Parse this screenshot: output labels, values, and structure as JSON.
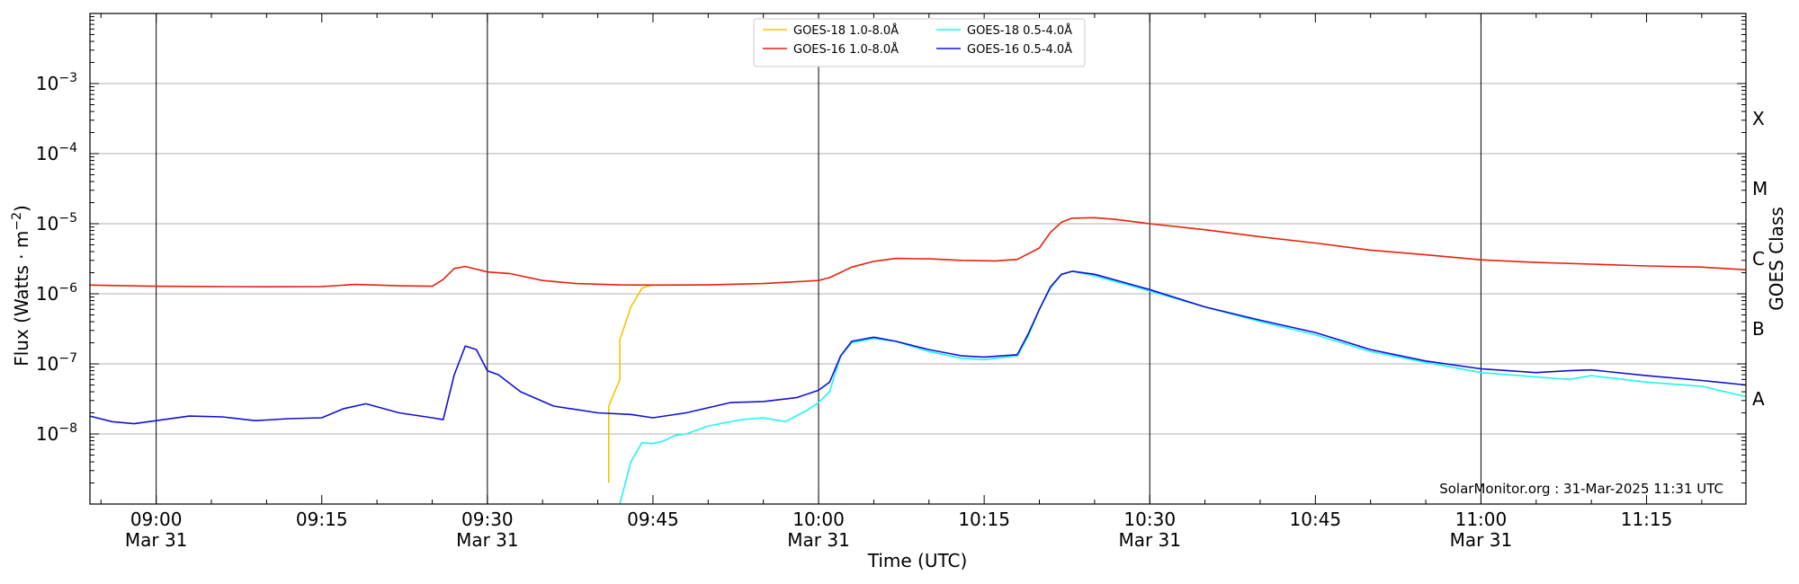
{
  "chart_data": {
    "type": "line",
    "xlabel": "Time (UTC)",
    "ylabel": "Flux (Watts · m⁻²)",
    "right_label": "GOES Class",
    "y_scale": "log",
    "xlim": [
      "08:54",
      "11:24"
    ],
    "ylim": [
      1e-09,
      0.01
    ],
    "grid": "horizontal at each decade; vertical lines at half-hour marks",
    "legend_position": "top-center",
    "credit": "SolarMonitor.org : 31-Mar-2025 11:31 UTC",
    "x_ticks": [
      {
        "t": "09:00",
        "line1": "09:00",
        "line2": "Mar 31"
      },
      {
        "t": "09:15",
        "line1": "09:15",
        "line2": ""
      },
      {
        "t": "09:30",
        "line1": "09:30",
        "line2": "Mar 31"
      },
      {
        "t": "09:45",
        "line1": "09:45",
        "line2": ""
      },
      {
        "t": "10:00",
        "line1": "10:00",
        "line2": "Mar 31"
      },
      {
        "t": "10:15",
        "line1": "10:15",
        "line2": ""
      },
      {
        "t": "10:30",
        "line1": "10:30",
        "line2": "Mar 31"
      },
      {
        "t": "10:45",
        "line1": "10:45",
        "line2": ""
      },
      {
        "t": "11:00",
        "line1": "11:00",
        "line2": "Mar 31"
      },
      {
        "t": "11:15",
        "line1": "11:15",
        "line2": ""
      }
    ],
    "y_ticks": [
      {
        "value": 1e-08,
        "base": "10",
        "exp": "−8"
      },
      {
        "value": 1e-07,
        "base": "10",
        "exp": "−7"
      },
      {
        "value": 1e-06,
        "base": "10",
        "exp": "−6"
      },
      {
        "value": 1e-05,
        "base": "10",
        "exp": "−5"
      },
      {
        "value": 0.0001,
        "base": "10",
        "exp": "−4"
      },
      {
        "value": 0.001,
        "base": "10",
        "exp": "−3"
      }
    ],
    "goes_classes": [
      {
        "label": "A",
        "value": 1e-08
      },
      {
        "label": "B",
        "value": 1e-07
      },
      {
        "label": "C",
        "value": 1e-06
      },
      {
        "label": "M",
        "value": 1e-05
      },
      {
        "label": "X",
        "value": 0.0001
      }
    ],
    "series": [
      {
        "name": "GOES-18 1.0-8.0Å",
        "color": "#f5c400",
        "points": [
          [
            "09:41",
            2e-09
          ],
          [
            "09:41",
            2.5e-08
          ],
          [
            "09:42",
            6e-08
          ],
          [
            "09:42",
            2.2e-07
          ],
          [
            "09:43",
            6.5e-07
          ],
          [
            "09:44",
            1.2e-06
          ],
          [
            "09:45",
            1.35e-06
          ]
        ]
      },
      {
        "name": "GOES-16 1.0-8.0Å",
        "color": "#e8200c",
        "points": [
          [
            "08:54",
            1.33e-06
          ],
          [
            "09:00",
            1.28e-06
          ],
          [
            "09:05",
            1.27e-06
          ],
          [
            "09:10",
            1.26e-06
          ],
          [
            "09:15",
            1.27e-06
          ],
          [
            "09:18",
            1.36e-06
          ],
          [
            "09:22",
            1.3e-06
          ],
          [
            "09:25",
            1.28e-06
          ],
          [
            "09:26",
            1.6e-06
          ],
          [
            "09:27",
            2.3e-06
          ],
          [
            "09:28",
            2.45e-06
          ],
          [
            "09:30",
            2.05e-06
          ],
          [
            "09:32",
            1.95e-06
          ],
          [
            "09:35",
            1.55e-06
          ],
          [
            "09:38",
            1.4e-06
          ],
          [
            "09:42",
            1.34e-06
          ],
          [
            "09:45",
            1.33e-06
          ],
          [
            "09:50",
            1.34e-06
          ],
          [
            "09:55",
            1.4e-06
          ],
          [
            "10:00",
            1.55e-06
          ],
          [
            "10:01",
            1.7e-06
          ],
          [
            "10:03",
            2.4e-06
          ],
          [
            "10:05",
            2.9e-06
          ],
          [
            "10:07",
            3.2e-06
          ],
          [
            "10:10",
            3.15e-06
          ],
          [
            "10:13",
            3e-06
          ],
          [
            "10:16",
            2.95e-06
          ],
          [
            "10:18",
            3.1e-06
          ],
          [
            "10:20",
            4.5e-06
          ],
          [
            "10:21",
            7.5e-06
          ],
          [
            "10:22",
            1.05e-05
          ],
          [
            "10:23",
            1.2e-05
          ],
          [
            "10:25",
            1.22e-05
          ],
          [
            "10:27",
            1.15e-05
          ],
          [
            "10:30",
            1e-05
          ],
          [
            "10:35",
            8.2e-06
          ],
          [
            "10:40",
            6.5e-06
          ],
          [
            "10:45",
            5.3e-06
          ],
          [
            "10:50",
            4.2e-06
          ],
          [
            "10:55",
            3.6e-06
          ],
          [
            "11:00",
            3.05e-06
          ],
          [
            "11:05",
            2.8e-06
          ],
          [
            "11:10",
            2.65e-06
          ],
          [
            "11:15",
            2.5e-06
          ],
          [
            "11:20",
            2.4e-06
          ],
          [
            "11:24",
            2.2e-06
          ]
        ]
      },
      {
        "name": "GOES-18 0.5-4.0Å",
        "color": "#1ff5ef",
        "points": [
          [
            "09:42",
            1e-09
          ],
          [
            "09:43",
            4e-09
          ],
          [
            "09:44",
            7.5e-09
          ],
          [
            "09:45",
            7.3e-09
          ],
          [
            "09:46",
            8e-09
          ],
          [
            "09:47",
            9.5e-09
          ],
          [
            "09:48",
            1e-08
          ],
          [
            "09:50",
            1.3e-08
          ],
          [
            "09:53",
            1.6e-08
          ],
          [
            "09:55",
            1.7e-08
          ],
          [
            "09:57",
            1.5e-08
          ],
          [
            "09:59",
            2.2e-08
          ],
          [
            "10:00",
            2.8e-08
          ],
          [
            "10:01",
            4e-08
          ],
          [
            "10:02",
            1.3e-07
          ],
          [
            "10:03",
            2e-07
          ],
          [
            "10:05",
            2.3e-07
          ],
          [
            "10:07",
            2.1e-07
          ],
          [
            "10:10",
            1.5e-07
          ],
          [
            "10:13",
            1.2e-07
          ],
          [
            "10:15",
            1.15e-07
          ],
          [
            "10:18",
            1.3e-07
          ],
          [
            "10:19",
            2.5e-07
          ],
          [
            "10:20",
            6e-07
          ],
          [
            "10:21",
            1.2e-06
          ],
          [
            "10:22",
            1.9e-06
          ],
          [
            "10:23",
            2.1e-06
          ],
          [
            "10:25",
            1.8e-06
          ],
          [
            "10:30",
            1.1e-06
          ],
          [
            "10:35",
            6.5e-07
          ],
          [
            "10:40",
            4e-07
          ],
          [
            "10:45",
            2.6e-07
          ],
          [
            "10:50",
            1.5e-07
          ],
          [
            "10:55",
            1.05e-07
          ],
          [
            "11:00",
            7.5e-08
          ],
          [
            "11:05",
            6.5e-08
          ],
          [
            "11:08",
            6e-08
          ],
          [
            "11:10",
            6.8e-08
          ],
          [
            "11:15",
            5.5e-08
          ],
          [
            "11:20",
            4.8e-08
          ],
          [
            "11:24",
            3.4e-08
          ]
        ]
      },
      {
        "name": "GOES-16 0.5-4.0Å",
        "color": "#1010d8",
        "points": [
          [
            "08:54",
            1.8e-08
          ],
          [
            "08:56",
            1.5e-08
          ],
          [
            "08:58",
            1.4e-08
          ],
          [
            "09:00",
            1.55e-08
          ],
          [
            "09:03",
            1.8e-08
          ],
          [
            "09:06",
            1.75e-08
          ],
          [
            "09:09",
            1.55e-08
          ],
          [
            "09:12",
            1.65e-08
          ],
          [
            "09:15",
            1.7e-08
          ],
          [
            "09:17",
            2.3e-08
          ],
          [
            "09:19",
            2.7e-08
          ],
          [
            "09:22",
            2e-08
          ],
          [
            "09:25",
            1.7e-08
          ],
          [
            "09:26",
            1.6e-08
          ],
          [
            "09:27",
            7e-08
          ],
          [
            "09:28",
            1.8e-07
          ],
          [
            "09:29",
            1.6e-07
          ],
          [
            "09:30",
            8e-08
          ],
          [
            "09:31",
            7e-08
          ],
          [
            "09:33",
            4e-08
          ],
          [
            "09:36",
            2.5e-08
          ],
          [
            "09:40",
            2e-08
          ],
          [
            "09:43",
            1.9e-08
          ],
          [
            "09:45",
            1.7e-08
          ],
          [
            "09:48",
            2e-08
          ],
          [
            "09:52",
            2.8e-08
          ],
          [
            "09:55",
            2.9e-08
          ],
          [
            "09:58",
            3.3e-08
          ],
          [
            "10:00",
            4.2e-08
          ],
          [
            "10:01",
            5.5e-08
          ],
          [
            "10:02",
            1.3e-07
          ],
          [
            "10:03",
            2.1e-07
          ],
          [
            "10:05",
            2.4e-07
          ],
          [
            "10:07",
            2.1e-07
          ],
          [
            "10:10",
            1.6e-07
          ],
          [
            "10:13",
            1.3e-07
          ],
          [
            "10:15",
            1.25e-07
          ],
          [
            "10:18",
            1.35e-07
          ],
          [
            "10:19",
            2.7e-07
          ],
          [
            "10:20",
            6e-07
          ],
          [
            "10:21",
            1.25e-06
          ],
          [
            "10:22",
            1.9e-06
          ],
          [
            "10:23",
            2.1e-06
          ],
          [
            "10:25",
            1.9e-06
          ],
          [
            "10:30",
            1.15e-06
          ],
          [
            "10:35",
            6.5e-07
          ],
          [
            "10:40",
            4.2e-07
          ],
          [
            "10:45",
            2.8e-07
          ],
          [
            "10:50",
            1.6e-07
          ],
          [
            "10:55",
            1.1e-07
          ],
          [
            "11:00",
            8.5e-08
          ],
          [
            "11:05",
            7.5e-08
          ],
          [
            "11:08",
            8e-08
          ],
          [
            "11:10",
            8.2e-08
          ],
          [
            "11:15",
            6.8e-08
          ],
          [
            "11:20",
            5.8e-08
          ],
          [
            "11:24",
            5e-08
          ]
        ]
      }
    ]
  }
}
